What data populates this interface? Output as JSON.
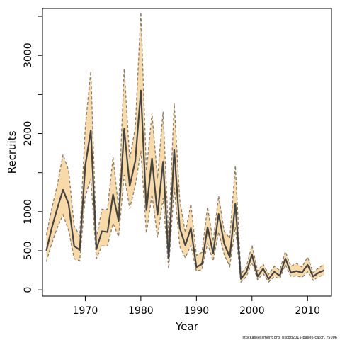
{
  "chart_data": {
    "type": "line",
    "title": "",
    "xlabel": "Year",
    "ylabel": "Recruits",
    "credit": "stockassessment.org, nscod2015-base6-catch, r5006",
    "xlim": [
      1962.3,
      2014.3
    ],
    "ylim": [
      -80,
      3600
    ],
    "x_ticks": [
      1970,
      1980,
      1990,
      2000,
      2010
    ],
    "y_ticks": [
      0,
      500,
      1000,
      2000,
      3000
    ],
    "y_minor_ticks": [
      0,
      500,
      1000,
      1500,
      2000,
      2500,
      3000,
      3500
    ],
    "grid": false,
    "band_color": "#f8d9a8",
    "line_color": "#444444",
    "bound_color": "#8a7a68",
    "series": [
      {
        "x": [
          1963,
          1964,
          1965,
          1966,
          1967,
          1968,
          1969,
          1970,
          1971,
          1972,
          1973,
          1974,
          1975,
          1976,
          1977,
          1978,
          1979,
          1980,
          1981,
          1982,
          1983,
          1984,
          1985,
          1986,
          1987,
          1988,
          1989,
          1990,
          1991,
          1992,
          1993,
          1994,
          1995,
          1996,
          1997,
          1998,
          1999,
          2000,
          2001,
          2002,
          2003,
          2004,
          2005,
          2006,
          2007,
          2008,
          2009,
          2010,
          2011,
          2012,
          2013
        ],
        "estimate": [
          500,
          800,
          1050,
          1280,
          1100,
          560,
          510,
          1590,
          2040,
          520,
          750,
          740,
          1220,
          880,
          2060,
          1330,
          1650,
          2550,
          1020,
          1680,
          960,
          1640,
          400,
          1790,
          790,
          570,
          790,
          290,
          330,
          800,
          470,
          970,
          590,
          420,
          1100,
          140,
          230,
          450,
          170,
          270,
          140,
          230,
          180,
          400,
          220,
          240,
          220,
          320,
          170,
          220,
          250
        ],
        "upper": [
          700,
          1050,
          1350,
          1730,
          1530,
          820,
          690,
          2080,
          2800,
          670,
          1030,
          1030,
          1700,
          1040,
          2830,
          1670,
          2080,
          3550,
          1520,
          2260,
          1430,
          2280,
          670,
          2390,
          1150,
          730,
          1100,
          440,
          480,
          1060,
          620,
          1200,
          750,
          660,
          1590,
          200,
          300,
          570,
          240,
          330,
          200,
          300,
          250,
          490,
          300,
          340,
          290,
          420,
          220,
          280,
          330
        ],
        "lower": [
          360,
          600,
          800,
          960,
          760,
          400,
          370,
          1200,
          1420,
          400,
          560,
          560,
          850,
          680,
          1470,
          1040,
          1330,
          1780,
          720,
          1220,
          670,
          1170,
          270,
          1310,
          560,
          410,
          570,
          240,
          260,
          590,
          370,
          740,
          450,
          300,
          800,
          100,
          170,
          350,
          130,
          210,
          100,
          170,
          140,
          320,
          170,
          180,
          160,
          230,
          120,
          170,
          190
        ]
      }
    ]
  }
}
